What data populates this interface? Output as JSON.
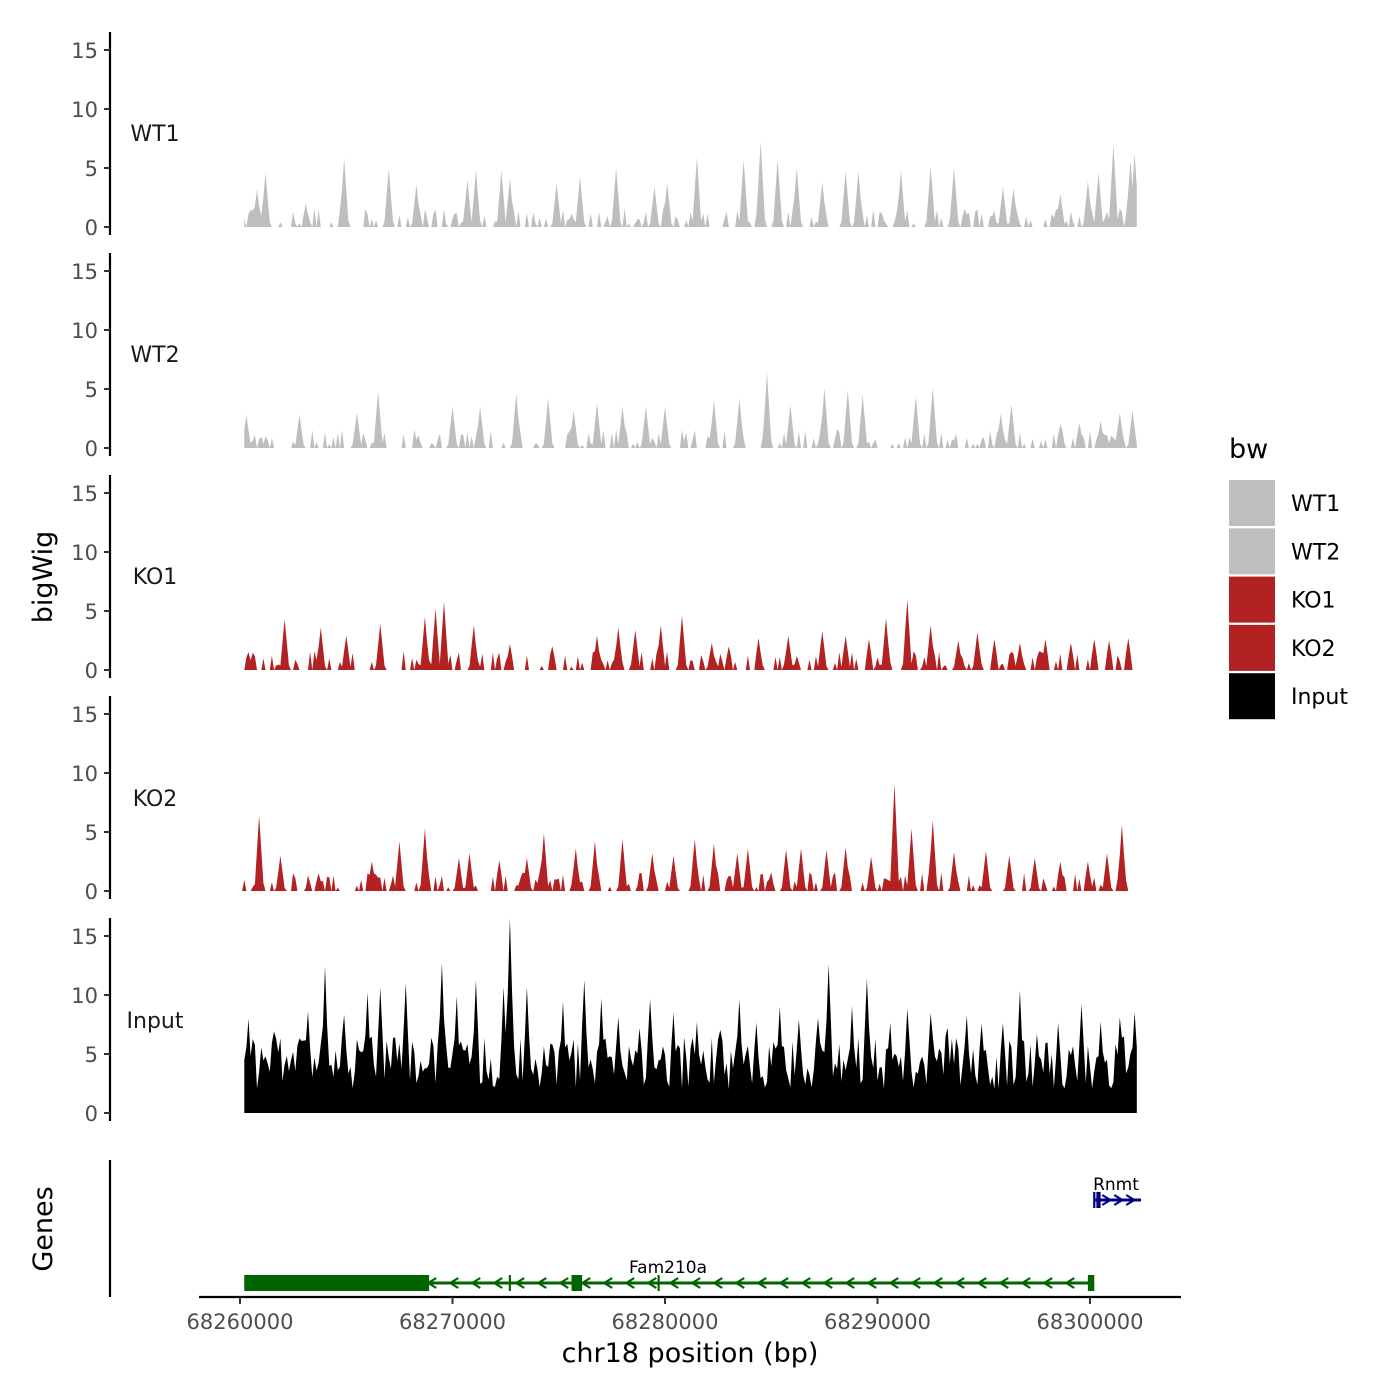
{
  "chart_data": {
    "type": "area",
    "chromosome": "chr18",
    "xlabel": "chr18 position (bp)",
    "xlim": [
      68259800,
      68304900
    ],
    "x_ticks": [
      68260000,
      68270000,
      68280000,
      68290000,
      68300000
    ],
    "x_tick_labels": [
      "68260000",
      "68270000",
      "68280000",
      "68290000",
      "68300000"
    ],
    "track_axis_label": "bigWig",
    "gene_axis_label": "Genes",
    "ylim": [
      0,
      16
    ],
    "y_ticks": [
      0,
      5,
      10,
      15
    ],
    "y_tick_labels": [
      "0",
      "5",
      "10",
      "15"
    ],
    "legend": {
      "title": "bw",
      "entries": [
        {
          "label": "WT1",
          "color": "#bebebe"
        },
        {
          "label": "WT2",
          "color": "#bebebe"
        },
        {
          "label": "KO1",
          "color": "#b22222"
        },
        {
          "label": "KO2",
          "color": "#b22222"
        },
        {
          "label": "Input",
          "color": "#000000"
        }
      ]
    },
    "series": [
      {
        "name": "WT1",
        "color": "#bebebe",
        "x_start": 68260200,
        "x_end": 68302200,
        "bin_size": 100,
        "peaks": [
          [
            68260800,
            3.2
          ],
          [
            68261200,
            4.6
          ],
          [
            68263100,
            2.0
          ],
          [
            68264900,
            5.8
          ],
          [
            68267000,
            4.9
          ],
          [
            68268300,
            3.6
          ],
          [
            68270700,
            4.0
          ],
          [
            68271100,
            4.8
          ],
          [
            68272300,
            4.8
          ],
          [
            68272700,
            4.1
          ],
          [
            68274900,
            3.7
          ],
          [
            68276000,
            4.3
          ],
          [
            68277700,
            5.0
          ],
          [
            68279500,
            3.4
          ],
          [
            68280100,
            3.7
          ],
          [
            68281500,
            5.9
          ],
          [
            68283700,
            5.7
          ],
          [
            68284500,
            7.2
          ],
          [
            68285300,
            5.7
          ],
          [
            68286200,
            5.0
          ],
          [
            68287400,
            3.8
          ],
          [
            68288500,
            4.7
          ],
          [
            68289100,
            4.7
          ],
          [
            68291100,
            4.8
          ],
          [
            68292500,
            5.1
          ],
          [
            68293600,
            5.0
          ],
          [
            68295900,
            3.4
          ],
          [
            68296400,
            3.3
          ],
          [
            68298600,
            2.8
          ],
          [
            68299900,
            3.9
          ],
          [
            68300400,
            4.6
          ],
          [
            68301100,
            7.0
          ],
          [
            68301900,
            5.6
          ],
          [
            68302100,
            6.2
          ]
        ]
      },
      {
        "name": "WT2",
        "color": "#bebebe",
        "x_start": 68260200,
        "x_end": 68302200,
        "bin_size": 100,
        "peaks": [
          [
            68260300,
            2.8
          ],
          [
            68262800,
            2.8
          ],
          [
            68265500,
            3.0
          ],
          [
            68266500,
            4.8
          ],
          [
            68270000,
            3.5
          ],
          [
            68271300,
            3.5
          ],
          [
            68273000,
            4.6
          ],
          [
            68274500,
            4.2
          ],
          [
            68275700,
            3.2
          ],
          [
            68276800,
            3.8
          ],
          [
            68278000,
            3.5
          ],
          [
            68279100,
            3.5
          ],
          [
            68280000,
            3.5
          ],
          [
            68282300,
            4.0
          ],
          [
            68283500,
            4.2
          ],
          [
            68284800,
            6.4
          ],
          [
            68285900,
            3.6
          ],
          [
            68287500,
            5.1
          ],
          [
            68288600,
            4.9
          ],
          [
            68289300,
            4.5
          ],
          [
            68291800,
            4.4
          ],
          [
            68292600,
            5.1
          ],
          [
            68295800,
            2.9
          ],
          [
            68296300,
            3.7
          ],
          [
            68298600,
            2.0
          ],
          [
            68299500,
            2.1
          ],
          [
            68300500,
            2.3
          ],
          [
            68301400,
            3.0
          ],
          [
            68302000,
            3.2
          ]
        ]
      },
      {
        "name": "KO1",
        "color": "#b22222",
        "x_start": 68260200,
        "x_end": 68302000,
        "bin_size": 100,
        "peaks": [
          [
            68260400,
            1.5
          ],
          [
            68262100,
            4.3
          ],
          [
            68263800,
            3.6
          ],
          [
            68265000,
            2.9
          ],
          [
            68266600,
            3.9
          ],
          [
            68268700,
            4.5
          ],
          [
            68269200,
            5.2
          ],
          [
            68269600,
            5.8
          ],
          [
            68271000,
            3.8
          ],
          [
            68272700,
            2.2
          ],
          [
            68274700,
            2.0
          ],
          [
            68276800,
            2.9
          ],
          [
            68277800,
            3.6
          ],
          [
            68278600,
            3.4
          ],
          [
            68279800,
            3.8
          ],
          [
            68280800,
            4.6
          ],
          [
            68282200,
            2.3
          ],
          [
            68283000,
            2.0
          ],
          [
            68284400,
            2.7
          ],
          [
            68285800,
            2.9
          ],
          [
            68287400,
            3.3
          ],
          [
            68288500,
            2.9
          ],
          [
            68289600,
            2.6
          ],
          [
            68290400,
            4.4
          ],
          [
            68291400,
            6.0
          ],
          [
            68292500,
            3.8
          ],
          [
            68293800,
            2.5
          ],
          [
            68294700,
            3.2
          ],
          [
            68295500,
            2.6
          ],
          [
            68296700,
            2.3
          ],
          [
            68297900,
            2.6
          ],
          [
            68299100,
            2.3
          ],
          [
            68300200,
            2.6
          ],
          [
            68300900,
            2.5
          ],
          [
            68301800,
            2.7
          ]
        ]
      },
      {
        "name": "KO2",
        "color": "#b22222",
        "x_start": 68260100,
        "x_end": 68302200,
        "bin_size": 100,
        "peaks": [
          [
            68260900,
            6.4
          ],
          [
            68261900,
            3.0
          ],
          [
            68263700,
            1.5
          ],
          [
            68266200,
            2.5
          ],
          [
            68267500,
            4.2
          ],
          [
            68268700,
            5.3
          ],
          [
            68270300,
            2.8
          ],
          [
            68270800,
            3.2
          ],
          [
            68272200,
            2.6
          ],
          [
            68273500,
            2.8
          ],
          [
            68274300,
            4.9
          ],
          [
            68275800,
            3.6
          ],
          [
            68276700,
            4.2
          ],
          [
            68278000,
            4.4
          ],
          [
            68279400,
            3.2
          ],
          [
            68280400,
            3.0
          ],
          [
            68281400,
            4.4
          ],
          [
            68282300,
            4.0
          ],
          [
            68283400,
            3.2
          ],
          [
            68283900,
            3.6
          ],
          [
            68285700,
            3.5
          ],
          [
            68286400,
            3.6
          ],
          [
            68287600,
            3.5
          ],
          [
            68288500,
            3.7
          ],
          [
            68289700,
            2.9
          ],
          [
            68290800,
            9.1
          ],
          [
            68291600,
            5.3
          ],
          [
            68292600,
            6.0
          ],
          [
            68293600,
            3.3
          ],
          [
            68295100,
            3.4
          ],
          [
            68296200,
            3.0
          ],
          [
            68297400,
            2.8
          ],
          [
            68298600,
            2.5
          ],
          [
            68299900,
            2.5
          ],
          [
            68300800,
            3.2
          ],
          [
            68301500,
            5.6
          ]
        ]
      },
      {
        "name": "Input",
        "color": "#000000",
        "x_start": 68260200,
        "x_end": 68302200,
        "bin_size": 100,
        "peaks": [
          [
            68260400,
            7.5
          ],
          [
            68261600,
            6.6
          ],
          [
            68263200,
            7.9
          ],
          [
            68264000,
            11.9
          ],
          [
            68264900,
            8.2
          ],
          [
            68266000,
            10.1
          ],
          [
            68266600,
            10.1
          ],
          [
            68267800,
            11.0
          ],
          [
            68269500,
            12.0
          ],
          [
            68270200,
            9.3
          ],
          [
            68271100,
            10.5
          ],
          [
            68272400,
            10.0
          ],
          [
            68272700,
            15.9
          ],
          [
            68273500,
            10.0
          ],
          [
            68275200,
            9.0
          ],
          [
            68276200,
            11.1
          ],
          [
            68277000,
            9.3
          ],
          [
            68277800,
            7.9
          ],
          [
            68278800,
            7.0
          ],
          [
            68279300,
            9.6
          ],
          [
            68280400,
            8.4
          ],
          [
            68281500,
            7.0
          ],
          [
            68282600,
            7.0
          ],
          [
            68283500,
            9.4
          ],
          [
            68284300,
            7.4
          ],
          [
            68285400,
            8.3
          ],
          [
            68286300,
            7.6
          ],
          [
            68287200,
            7.8
          ],
          [
            68287700,
            11.9
          ],
          [
            68288800,
            8.9
          ],
          [
            68289500,
            11.4
          ],
          [
            68290600,
            7.0
          ],
          [
            68291400,
            8.4
          ],
          [
            68292500,
            8.4
          ],
          [
            68293300,
            6.6
          ],
          [
            68294200,
            7.9
          ],
          [
            68294900,
            7.5
          ],
          [
            68295900,
            7.6
          ],
          [
            68296700,
            9.9
          ],
          [
            68297500,
            6.7
          ],
          [
            68298500,
            7.5
          ],
          [
            68299600,
            8.5
          ],
          [
            68300500,
            7.5
          ],
          [
            68301400,
            8.0
          ],
          [
            68302100,
            8.0
          ]
        ]
      }
    ],
    "genes": [
      {
        "name": "Fam210a",
        "color": "#006400",
        "strand": "-",
        "start": 68260200,
        "end": 68300200,
        "exons": [
          [
            68260200,
            68268900
          ],
          [
            68275600,
            68276100
          ],
          [
            68299900,
            68300200
          ]
        ],
        "small_marks": [
          68272700,
          68279700
        ]
      },
      {
        "name": "Rnmt",
        "color": "#000080",
        "strand": "+",
        "start": 68300200,
        "end": 68302400,
        "exons": [
          [
            68300300,
            68300500
          ]
        ],
        "small_marks": [
          68300200
        ]
      }
    ]
  }
}
